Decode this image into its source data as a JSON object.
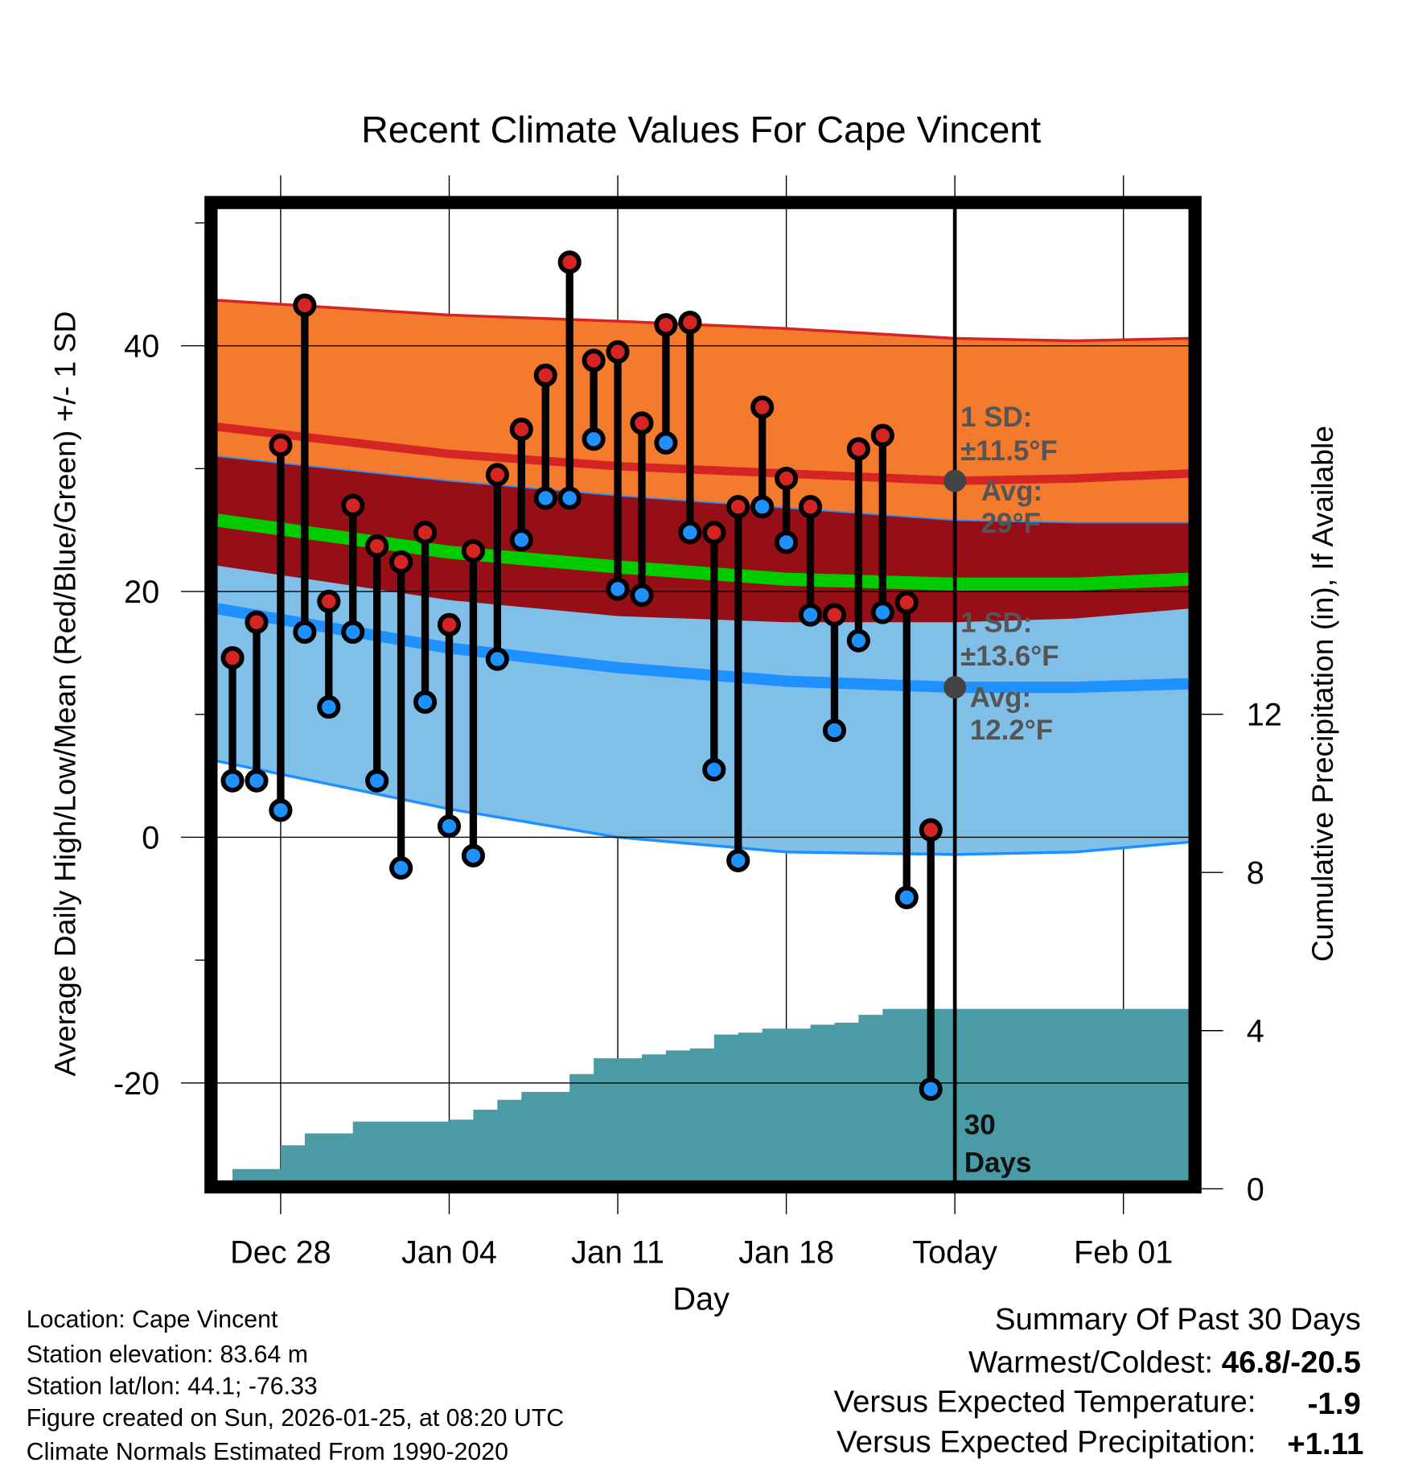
{
  "chart_data": {
    "type": "line",
    "title": "Recent Climate Values For Cape Vincent",
    "xlabel": "Day",
    "ylabel": "Average Daily High/Low/Mean (Red/Blue/Green) +/- 1 SD",
    "y2label": "Cumulative Precipitation (in), If Available",
    "x_ticks": [
      {
        "label": "Dec 28",
        "day": 2
      },
      {
        "label": "Jan 04",
        "day": 9
      },
      {
        "label": "Jan 11",
        "day": 16
      },
      {
        "label": "Jan 18",
        "day": 23
      },
      {
        "label": "Today",
        "day": 30
      },
      {
        "label": "Feb 01",
        "day": 37
      }
    ],
    "x_note": "day 0 = Dec 26",
    "xlim": [
      -0.62,
      39.7
    ],
    "ylim": [
      -28,
      51.2
    ],
    "y_ticks": [
      40,
      20,
      0,
      -20
    ],
    "y_minor_ticks": [
      50,
      30,
      10,
      -10
    ],
    "y2lim": [
      0,
      24.8
    ],
    "y2_ticks": [
      0,
      4,
      8,
      12
    ],
    "grid": true,
    "dates": [
      "Dec 26",
      "Dec 27",
      "Dec 28",
      "Dec 29",
      "Dec 30",
      "Dec 31",
      "Jan 01",
      "Jan 02",
      "Jan 03",
      "Jan 04",
      "Jan 05",
      "Jan 06",
      "Jan 07",
      "Jan 08",
      "Jan 09",
      "Jan 10",
      "Jan 11",
      "Jan 12",
      "Jan 13",
      "Jan 14",
      "Jan 15",
      "Jan 16",
      "Jan 17",
      "Jan 18",
      "Jan 19",
      "Jan 20",
      "Jan 21",
      "Jan 22",
      "Jan 23",
      "Jan 24"
    ],
    "highs": [
      14.6,
      17.5,
      31.9,
      43.3,
      19.2,
      27.0,
      23.7,
      22.4,
      24.8,
      17.3,
      23.3,
      29.5,
      33.2,
      37.6,
      46.8,
      38.8,
      39.5,
      33.7,
      41.7,
      41.9,
      24.8,
      26.9,
      35.0,
      29.2,
      26.9,
      18.1,
      31.6,
      32.7,
      19.1,
      0.6
    ],
    "lows": [
      4.6,
      4.6,
      2.2,
      16.7,
      10.6,
      16.7,
      4.6,
      -2.5,
      11.0,
      0.9,
      -1.5,
      14.5,
      24.2,
      27.6,
      27.6,
      32.4,
      20.2,
      19.7,
      32.1,
      24.8,
      5.5,
      -1.9,
      26.9,
      24.0,
      18.1,
      8.7,
      16.0,
      18.3,
      -4.9,
      -20.5
    ],
    "precip_cumulative": [
      0.5,
      0.5,
      1.1,
      1.4,
      1.4,
      1.7,
      1.7,
      1.7,
      1.7,
      1.75,
      2.0,
      2.25,
      2.45,
      2.45,
      2.9,
      3.3,
      3.3,
      3.4,
      3.5,
      3.55,
      3.9,
      3.95,
      4.05,
      4.05,
      4.15,
      4.2,
      4.4,
      4.55,
      4.55,
      4.55
    ],
    "normals": {
      "days": [
        -0.62,
        9,
        16,
        23,
        30,
        35,
        39.7
      ],
      "high_upper": [
        43.7,
        42.5,
        42.0,
        41.4,
        40.6,
        40.4,
        40.6
      ],
      "high_mean": [
        33.4,
        31.2,
        30.2,
        29.6,
        29.0,
        29.2,
        29.6
      ],
      "high_lower": [
        22.1,
        19.3,
        18.0,
        17.5,
        17.5,
        17.8,
        18.6
      ],
      "low_upper": [
        31.0,
        29.0,
        27.8,
        26.8,
        25.8,
        25.6,
        25.6
      ],
      "low_mean": [
        18.6,
        15.4,
        13.8,
        12.7,
        12.2,
        12.2,
        12.5
      ],
      "low_lower": [
        6.2,
        2.3,
        0.0,
        -1.2,
        -1.4,
        -1.2,
        -0.4
      ],
      "mean": [
        25.8,
        23.2,
        22.0,
        21.0,
        20.6,
        20.6,
        21.0
      ]
    },
    "annotations": {
      "high_sd_label": "1 SD:",
      "high_sd_value": "±11.5°F",
      "high_avg_label": "Avg:",
      "high_avg_value": "29°F",
      "high_avg": 29.0,
      "low_sd_label": "1 SD:",
      "low_sd_value": "±13.6°F",
      "low_avg_label": "Avg:",
      "low_avg_value": "12.2°F",
      "low_avg": 12.2,
      "days_line1": "30",
      "days_line2": "Days"
    },
    "colors": {
      "high_band": "#F47A2E",
      "overlap_band": "#960E16",
      "low_band": "#80C0E8",
      "high_line": "#D42424",
      "low_line": "#1E90FF",
      "mean_line": "#00CC00",
      "precip": "#4A9BA5",
      "high_marker": "#D42424",
      "low_marker": "#1E90FF"
    }
  },
  "footer": {
    "location": "Location: Cape Vincent",
    "elevation": "Station elevation: 83.64 m",
    "latlon": "Station lat/lon: 44.1; -76.33",
    "created": "Figure created on Sun, 2026-01-25, at 08:20 UTC",
    "normals": "Climate Normals Estimated From 1990-2020"
  },
  "summary": {
    "title": "Summary Of Past 30 Days",
    "warmest_coldest_label": "Warmest/Coldest: ",
    "warmest_coldest_value": "46.8/-20.5",
    "temp_label": "Versus Expected Temperature:",
    "temp_value": "-1.9",
    "precip_label": "Versus Expected Precipitation:",
    "precip_value": "+1.11"
  }
}
